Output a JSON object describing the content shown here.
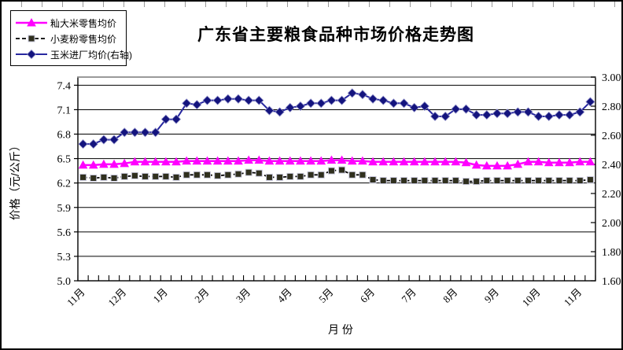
{
  "chart_data": {
    "type": "line",
    "title": "广东省主要粮食品种市场价格走势图",
    "xlabel": "月  份",
    "ylabel_left": "价格（元/公斤）",
    "grid": true,
    "legend_position": "top-left",
    "n_points": 50,
    "x_tick_labels": [
      "11月",
      "12月",
      "1月",
      "2月",
      "3月",
      "4月",
      "5月",
      "6月",
      "7月",
      "8月",
      "9月",
      "10月",
      "11月"
    ],
    "x_label_every": 4,
    "left_axis": {
      "min": 5.0,
      "max": 7.5,
      "ticks": [
        5.0,
        5.3,
        5.6,
        5.9,
        6.2,
        6.5,
        6.8,
        7.1,
        7.4
      ],
      "decimals": 1
    },
    "right_axis": {
      "min": 1.6,
      "max": 3.0,
      "ticks": [
        1.6,
        1.8,
        2.0,
        2.2,
        2.4,
        2.6,
        2.8,
        3.0
      ],
      "decimals": 2
    },
    "colors": {
      "grid": "#000000",
      "frame": "#000000",
      "frame_top": "#9a9a9a",
      "background": "#ffffff"
    },
    "series": [
      {
        "id": "rice-retail",
        "name": "籼大米零售均价",
        "axis": "left",
        "color": "#FF00FF",
        "marker": "triangle",
        "marker_fill": "#FF00FF",
        "dash": false,
        "width": 2.5,
        "values": [
          6.42,
          6.42,
          6.43,
          6.43,
          6.44,
          6.46,
          6.46,
          6.46,
          6.46,
          6.46,
          6.47,
          6.47,
          6.47,
          6.47,
          6.47,
          6.47,
          6.48,
          6.48,
          6.47,
          6.47,
          6.47,
          6.47,
          6.47,
          6.47,
          6.48,
          6.48,
          6.47,
          6.47,
          6.46,
          6.46,
          6.46,
          6.46,
          6.46,
          6.46,
          6.46,
          6.46,
          6.46,
          6.45,
          6.42,
          6.41,
          6.41,
          6.41,
          6.43,
          6.46,
          6.46,
          6.45,
          6.45,
          6.45,
          6.46,
          6.46
        ]
      },
      {
        "id": "wheat-flour-retail",
        "name": "小麦粉零售均价",
        "axis": "left",
        "color": "#000000",
        "marker": "square",
        "marker_fill": "#2f2f1e",
        "marker_stroke": "#c8c8dc",
        "dash": true,
        "width": 1.8,
        "values": [
          6.27,
          6.26,
          6.27,
          6.26,
          6.28,
          6.29,
          6.28,
          6.28,
          6.28,
          6.27,
          6.3,
          6.3,
          6.3,
          6.29,
          6.3,
          6.31,
          6.33,
          6.32,
          6.27,
          6.27,
          6.28,
          6.28,
          6.3,
          6.3,
          6.35,
          6.36,
          6.3,
          6.3,
          6.24,
          6.23,
          6.23,
          6.23,
          6.23,
          6.23,
          6.23,
          6.23,
          6.23,
          6.22,
          6.22,
          6.23,
          6.23,
          6.23,
          6.23,
          6.23,
          6.23,
          6.23,
          6.23,
          6.23,
          6.23,
          6.24
        ]
      },
      {
        "id": "corn-factory",
        "name": "玉米进厂均价(右轴)",
        "axis": "right",
        "color": "#2828a0",
        "marker": "diamond",
        "marker_fill": "#14147e",
        "marker_stroke": "#9090c8",
        "dash": false,
        "width": 2,
        "values": [
          2.54,
          2.54,
          2.57,
          2.57,
          2.62,
          2.62,
          2.62,
          2.62,
          2.71,
          2.71,
          2.82,
          2.81,
          2.84,
          2.84,
          2.85,
          2.85,
          2.84,
          2.84,
          2.77,
          2.76,
          2.79,
          2.8,
          2.82,
          2.82,
          2.84,
          2.84,
          2.89,
          2.88,
          2.85,
          2.84,
          2.82,
          2.82,
          2.79,
          2.8,
          2.73,
          2.73,
          2.78,
          2.78,
          2.74,
          2.74,
          2.75,
          2.75,
          2.76,
          2.76,
          2.73,
          2.73,
          2.74,
          2.74,
          2.76,
          2.83
        ]
      }
    ]
  }
}
